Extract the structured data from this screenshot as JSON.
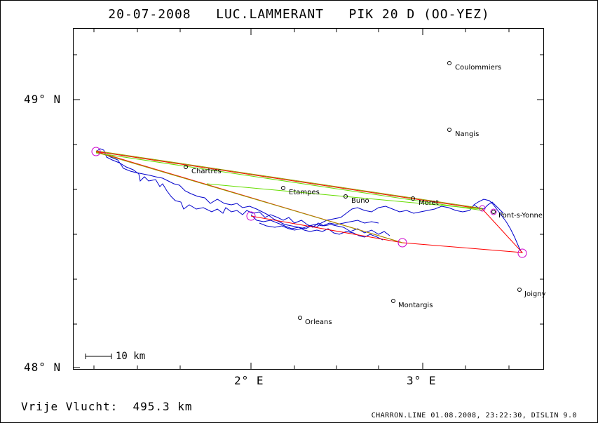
{
  "header": {
    "title": "20-07-2008   LUC.LAMMERANT   PIK 20 D (OO-YEZ)"
  },
  "axes": {
    "lat_labels": [
      "49° N",
      "48° N"
    ],
    "lon_labels": [
      "2° E",
      "3° E"
    ]
  },
  "scale_bar": {
    "label": "10 km"
  },
  "towns": [
    {
      "name": "Coulommiers"
    },
    {
      "name": "Nangis"
    },
    {
      "name": "Chartres"
    },
    {
      "name": "Etampes"
    },
    {
      "name": "Buno"
    },
    {
      "name": "Moret"
    },
    {
      "name": "Pont-s-Yonne"
    },
    {
      "name": "Joigny"
    },
    {
      "name": "Montargis"
    },
    {
      "name": "Orleans"
    }
  ],
  "footer": {
    "distance_label": "Vrije Vlucht:  495.3 km",
    "credits": "CHARRON.LINE 01.08.2008, 23:22:30, DISLIN 9.0"
  },
  "colors": {
    "track": "#0000cc",
    "task_line": "#ff0000",
    "optimized_line": "#66dd00",
    "turnpoint_circle": "#cc00cc"
  }
}
